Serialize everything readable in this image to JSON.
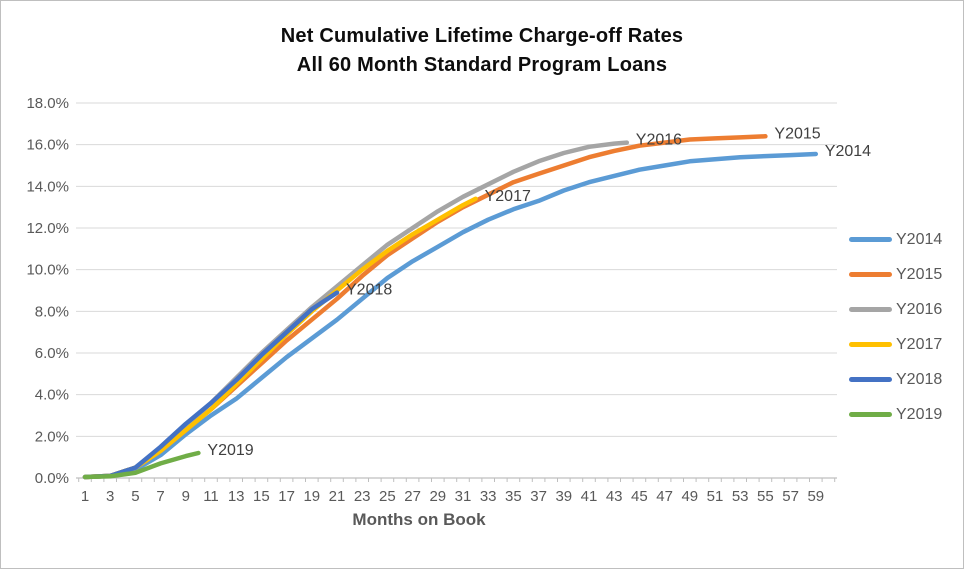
{
  "chart": {
    "title_line1": "Net Cumulative Lifetime Charge-off Rates",
    "title_line2": "All 60 Month Standard Program Loans",
    "x_axis_title": "Months on Book"
  },
  "chart_data": {
    "type": "line",
    "title": "Net Cumulative Lifetime Charge-off Rates — All 60 Month Standard Program Loans",
    "xlabel": "Months on Book",
    "ylabel": "",
    "unit": "percent",
    "xlim": [
      1,
      60
    ],
    "ylim": [
      0,
      18
    ],
    "grid": "horizontal",
    "legend_position": "right",
    "x_ticks": [
      1,
      3,
      5,
      7,
      9,
      11,
      13,
      15,
      17,
      19,
      21,
      23,
      25,
      27,
      29,
      31,
      33,
      35,
      37,
      39,
      41,
      43,
      45,
      47,
      49,
      51,
      53,
      55,
      57,
      59
    ],
    "y_ticks_percent": [
      0,
      2,
      4,
      6,
      8,
      10,
      12,
      14,
      16,
      18
    ],
    "y_tick_labels": [
      "0.0%",
      "2.0%",
      "4.0%",
      "6.0%",
      "8.0%",
      "10.0%",
      "12.0%",
      "14.0%",
      "16.0%",
      "18.0%"
    ],
    "series": [
      {
        "name": "Y2014",
        "end_label": "Y2014",
        "color": "#5B9BD5",
        "months": [
          1,
          3,
          5,
          7,
          9,
          11,
          13,
          15,
          17,
          19,
          21,
          23,
          25,
          27,
          29,
          31,
          33,
          35,
          37,
          39,
          41,
          43,
          45,
          47,
          49,
          51,
          53,
          55,
          57,
          59
        ],
        "values": [
          0.05,
          0.1,
          0.4,
          1.1,
          2.1,
          3.0,
          3.8,
          4.8,
          5.8,
          6.7,
          7.6,
          8.6,
          9.6,
          10.4,
          11.1,
          11.8,
          12.4,
          12.9,
          13.3,
          13.8,
          14.2,
          14.5,
          14.8,
          15.0,
          15.2,
          15.3,
          15.4,
          15.45,
          15.5,
          15.55
        ]
      },
      {
        "name": "Y2015",
        "end_label": "Y2015",
        "color": "#ED7D31",
        "months": [
          1,
          3,
          5,
          7,
          9,
          11,
          13,
          15,
          17,
          19,
          21,
          23,
          25,
          27,
          29,
          31,
          33,
          35,
          37,
          39,
          41,
          43,
          45,
          47,
          49,
          51,
          53,
          55
        ],
        "values": [
          0.05,
          0.1,
          0.5,
          1.3,
          2.3,
          3.3,
          4.4,
          5.5,
          6.6,
          7.6,
          8.6,
          9.7,
          10.7,
          11.5,
          12.3,
          13.0,
          13.6,
          14.2,
          14.6,
          15.0,
          15.4,
          15.7,
          15.95,
          16.1,
          16.25,
          16.3,
          16.35,
          16.4
        ]
      },
      {
        "name": "Y2016",
        "end_label": "Y2016",
        "color": "#A5A5A5",
        "months": [
          1,
          3,
          5,
          7,
          9,
          11,
          13,
          15,
          17,
          19,
          21,
          23,
          25,
          27,
          29,
          31,
          33,
          35,
          37,
          39,
          41,
          43,
          44
        ],
        "values": [
          0.05,
          0.1,
          0.5,
          1.4,
          2.5,
          3.6,
          4.8,
          6.0,
          7.1,
          8.2,
          9.2,
          10.2,
          11.2,
          12.0,
          12.8,
          13.5,
          14.1,
          14.7,
          15.2,
          15.6,
          15.9,
          16.05,
          16.1
        ]
      },
      {
        "name": "Y2017",
        "end_label": "Y2017",
        "color": "#FFC000",
        "months": [
          1,
          3,
          5,
          7,
          9,
          11,
          13,
          15,
          17,
          19,
          21,
          23,
          25,
          27,
          29,
          31,
          32
        ],
        "values": [
          0.05,
          0.1,
          0.5,
          1.3,
          2.3,
          3.3,
          4.5,
          5.7,
          6.9,
          8.0,
          9.0,
          10.0,
          10.9,
          11.7,
          12.4,
          13.1,
          13.4
        ]
      },
      {
        "name": "Y2018",
        "end_label": "Y2018",
        "color": "#4472C4",
        "months": [
          1,
          3,
          5,
          7,
          9,
          11,
          13,
          15,
          17,
          19,
          21
        ],
        "values": [
          0.05,
          0.1,
          0.5,
          1.5,
          2.6,
          3.6,
          4.7,
          5.9,
          7.0,
          8.1,
          8.9
        ]
      },
      {
        "name": "Y2019",
        "end_label": "Y2019",
        "color": "#70AD47",
        "months": [
          1,
          3,
          5,
          7,
          9,
          10
        ],
        "values": [
          0.05,
          0.08,
          0.25,
          0.7,
          1.05,
          1.2
        ]
      }
    ]
  },
  "legend": {
    "items": [
      {
        "label": "Y2014",
        "color": "#5B9BD5"
      },
      {
        "label": "Y2015",
        "color": "#ED7D31"
      },
      {
        "label": "Y2016",
        "color": "#A5A5A5"
      },
      {
        "label": "Y2017",
        "color": "#FFC000"
      },
      {
        "label": "Y2018",
        "color": "#4472C4"
      },
      {
        "label": "Y2019",
        "color": "#70AD47"
      }
    ]
  },
  "colors": {
    "gridline": "#D9D9D9",
    "axis_line": "#BFBFBF",
    "tick_label": "#595959",
    "data_label": "#404040",
    "title": "#0d0d0d",
    "background": "#FFFFFF"
  }
}
